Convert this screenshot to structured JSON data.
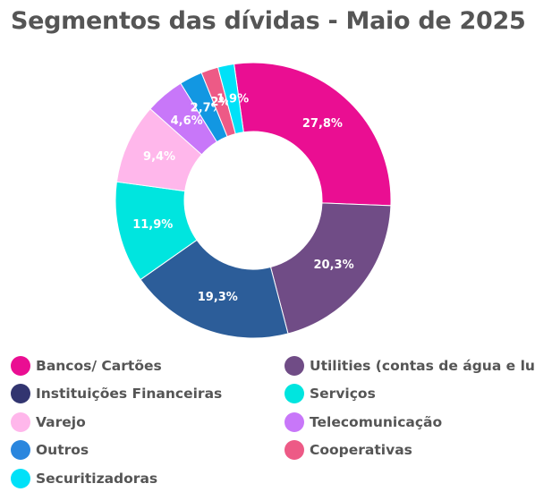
{
  "title": "Segmentos das dívidas - Maio de 2025",
  "chart_data": {
    "type": "pie",
    "title": "Segmentos das dívidas - Maio de 2025",
    "donut": true,
    "legend_position": "bottom",
    "series": [
      {
        "name": "Bancos/ Cartões",
        "value": 27.8,
        "label": "27,8%",
        "color": "#ea0e92"
      },
      {
        "name": "Utilities (contas de água e luz",
        "value": 20.3,
        "label": "20,3%",
        "color": "#704c86"
      },
      {
        "name": "Instituições Financeiras",
        "value": 19.3,
        "label": "19,3%",
        "color": "#2c5d99"
      },
      {
        "name": "Serviços",
        "value": 11.9,
        "label": "11,9%",
        "color": "#00e5df"
      },
      {
        "name": "Varejo",
        "value": 9.4,
        "label": "9,4%",
        "color": "#ffb7eb"
      },
      {
        "name": "Telecomunicação",
        "value": 4.6,
        "label": "4,6%",
        "color": "#c877f9"
      },
      {
        "name": "Outros",
        "value": 2.7,
        "label": "2,7%",
        "color": "#1297e2"
      },
      {
        "name": "Cooperativas",
        "value": 2.0,
        "label": "2%",
        "color": "#ed5a86"
      },
      {
        "name": "Securitizadoras",
        "value": 1.9,
        "label": "1,9%",
        "color": "#00e1f8"
      }
    ]
  },
  "legend": [
    {
      "label": "Bancos/ Cartões",
      "color": "#ea0e92"
    },
    {
      "label": "Utilities (contas de água e luz",
      "color": "#704c86"
    },
    {
      "label": "Instituições Financeiras",
      "color": "#323570"
    },
    {
      "label": "Serviços",
      "color": "#00e5df"
    },
    {
      "label": "Varejo",
      "color": "#ffb7eb"
    },
    {
      "label": "Telecomunicação",
      "color": "#c877f9"
    },
    {
      "label": "Outros",
      "color": "#2a86de"
    },
    {
      "label": "Cooperativas",
      "color": "#ed5a86"
    },
    {
      "label": "Securitizadoras",
      "color": "#00e1f8"
    }
  ]
}
